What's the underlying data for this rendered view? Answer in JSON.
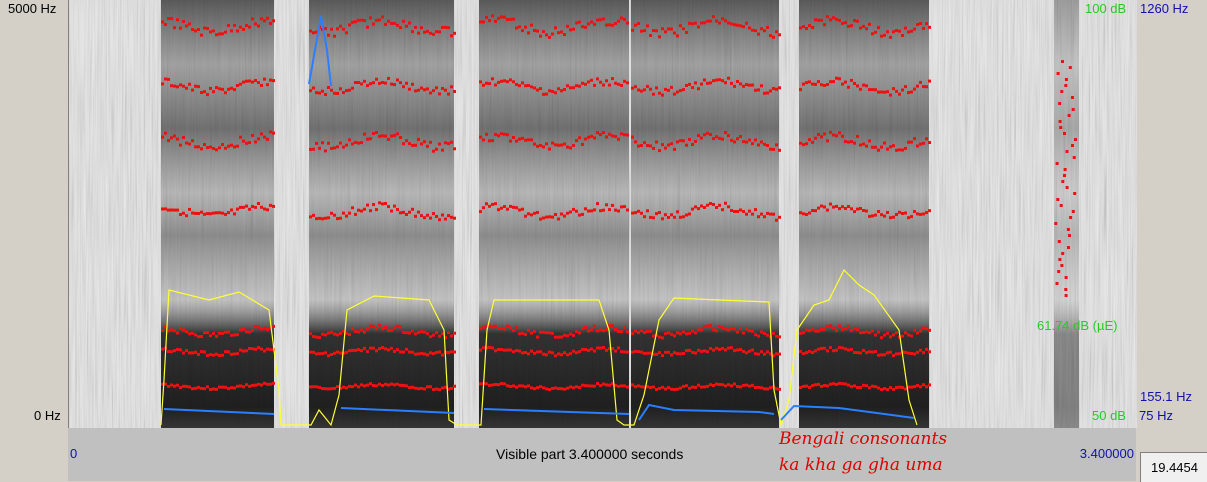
{
  "freq_axis": {
    "top": "5000 Hz",
    "bottom": "0 Hz"
  },
  "intensity_axis": {
    "top": "100 dB",
    "middle": "61.74 dB (µE)",
    "bottom": "50 dB"
  },
  "pitch_axis": {
    "top": "1260 Hz",
    "cursor": "155.1 Hz",
    "bottom": "75 Hz"
  },
  "time_axis": {
    "start": "0",
    "end": "3.400000",
    "visible_part": "Visible part 3.400000 seconds"
  },
  "caption": {
    "line1": "Bengali consonants",
    "line2": "ka kha ga gha uma"
  },
  "selection_value": "19.4454",
  "colors": {
    "formant": "#ee1111",
    "intensity": "#ffff33",
    "pitch": "#2a7fff"
  }
}
